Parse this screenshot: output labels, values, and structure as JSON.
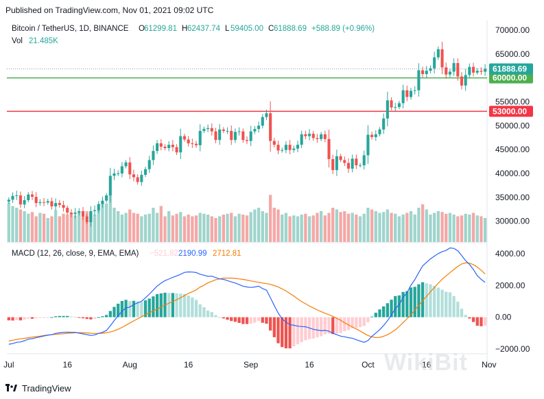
{
  "header": {
    "published": "Published on TradingView.com, Nov 01, 2021 09:02 UTC"
  },
  "legend": {
    "symbol": "Bitcoin / TetherUS, 1D, BINANCE",
    "o_label": "O",
    "o_value": "61299.81",
    "h_label": "H",
    "h_value": "62437.74",
    "l_label": "L",
    "l_value": "59405.00",
    "c_label": "C",
    "c_value": "61888.69",
    "change": "+588.89 (+0.96%)",
    "vol_label": "Vol",
    "vol_value": "21.485K"
  },
  "macd_legend": {
    "label": "MACD (12, 26, close, 9, EMA, EMA)",
    "hist": "−521.82",
    "macd": "2190.99",
    "signal": "2712.81"
  },
  "footer": {
    "brand": "TradingView"
  },
  "watermark": "WikiBit",
  "colors": {
    "up": "#26a69a",
    "down": "#ef5350",
    "vol_up": "#9fd4cc",
    "vol_down": "#f4a8a6",
    "macd": "#2962ff",
    "signal": "#f57c00",
    "hist_up_strong": "#26a69a",
    "hist_up_weak": "#b2dfdb",
    "hist_down_strong": "#ef5350",
    "hist_down_weak": "#ffcdd2",
    "green_line": "#4caf50",
    "red_line": "#f23645",
    "price_tag": "#26a69a"
  },
  "chart_data": [
    {
      "type": "candlestick",
      "price_axis": [
        "70000.00",
        "65000.00",
        "60000.00",
        "55000.00",
        "50000.00",
        "45000.00",
        "40000.00",
        "35000.00",
        "30000.00"
      ],
      "time_axis": [
        {
          "label": "Jul",
          "day": 0
        },
        {
          "label": "16",
          "day": 15
        },
        {
          "label": "Aug",
          "day": 31
        },
        {
          "label": "16",
          "day": 46
        },
        {
          "label": "Sep",
          "day": 62
        },
        {
          "label": "16",
          "day": 77
        },
        {
          "label": "Oct",
          "day": 92
        },
        {
          "label": "16",
          "day": 107
        },
        {
          "label": "Nov",
          "day": 123
        }
      ],
      "ylim": [
        25500,
        72000
      ],
      "horizontal_lines": [
        {
          "price": 60000,
          "label": "60000.00",
          "color": "#4caf50"
        },
        {
          "price": 53000,
          "label": "53000.00",
          "color": "#f23645"
        }
      ],
      "last_price": {
        "price": 61888.69,
        "label": "61888.69"
      },
      "closes": [
        34500,
        35300,
        35400,
        33500,
        34400,
        35600,
        35100,
        33800,
        34000,
        33900,
        34200,
        33100,
        33800,
        33400,
        32800,
        31800,
        31500,
        31800,
        32100,
        31000,
        29800,
        32100,
        32300,
        33600,
        34300,
        35400,
        39500,
        40000,
        40000,
        41500,
        42300,
        39800,
        39200,
        38200,
        39700,
        40900,
        42800,
        44700,
        46300,
        45600,
        45300,
        46000,
        45500,
        44400,
        47800,
        47100,
        46300,
        46200,
        45900,
        48900,
        49300,
        49500,
        48800,
        47000,
        49200,
        48900,
        48900,
        47000,
        48700,
        48800,
        47000,
        46800,
        48800,
        49300,
        50000,
        51800,
        52600,
        46800,
        46000,
        44800,
        44900,
        46000,
        44900,
        45200,
        46000,
        48200,
        47800,
        48300,
        47400,
        47200,
        48200,
        47200,
        43000,
        40700,
        43600,
        42800,
        42200,
        41000,
        43100,
        41700,
        41700,
        43800,
        48100,
        47600,
        48200,
        49200,
        51500,
        55300,
        53800,
        53900,
        54700,
        57400,
        56000,
        57300,
        57400,
        61600,
        60800,
        61500,
        62000,
        64300,
        66000,
        62200,
        60700,
        61300,
        63100,
        60300,
        58400,
        60600,
        62300,
        61100,
        61500,
        61300,
        61900
      ],
      "volume_axis_note": "volume bars overlaid at bottom of price pane",
      "volumes": [
        46,
        42,
        40,
        38,
        36,
        33,
        35,
        30,
        34,
        33,
        28,
        30,
        37,
        30,
        33,
        32,
        34,
        31,
        35,
        30,
        36,
        35,
        32,
        38,
        48,
        45,
        55,
        40,
        36,
        32,
        34,
        38,
        34,
        33,
        30,
        32,
        33,
        40,
        34,
        42,
        30,
        36,
        31,
        33,
        35,
        30,
        32,
        30,
        31,
        34,
        33,
        32,
        30,
        28,
        30,
        32,
        33,
        34,
        30,
        33,
        32,
        31,
        35,
        38,
        40,
        36,
        34,
        55,
        40,
        38,
        32,
        34,
        30,
        31,
        30,
        32,
        33,
        30,
        31,
        34,
        36,
        31,
        34,
        40,
        38,
        35,
        36,
        33,
        34,
        32,
        30,
        33,
        40,
        38,
        36,
        34,
        35,
        38,
        34,
        33,
        30,
        32,
        34,
        36,
        32,
        40,
        44,
        38,
        32,
        34,
        36,
        35,
        33,
        34,
        32,
        30,
        31,
        33,
        32,
        34,
        31,
        30,
        28
      ]
    },
    {
      "type": "macd",
      "axis": [
        "4000.00",
        "2000.00",
        "0.00",
        "−2000.00"
      ],
      "ylim": [
        -2300,
        4600
      ],
      "macd": [
        -1700,
        -1660,
        -1580,
        -1560,
        -1480,
        -1380,
        -1350,
        -1290,
        -1240,
        -1180,
        -1130,
        -1100,
        -1020,
        -980,
        -960,
        -940,
        -950,
        -960,
        -1000,
        -1050,
        -1100,
        -1150,
        -1120,
        -1020,
        -950,
        -840,
        -540,
        -210,
        90,
        380,
        590,
        640,
        800,
        900,
        1000,
        1220,
        1450,
        1700,
        1960,
        2140,
        2300,
        2400,
        2510,
        2600,
        2700,
        2820,
        2850,
        2840,
        2810,
        2700,
        2640,
        2570,
        2580,
        2490,
        2410,
        2380,
        2300,
        2220,
        2150,
        2050,
        1950,
        1900,
        1870,
        1900,
        1950,
        1800,
        1700,
        1230,
        730,
        260,
        -100,
        -310,
        -470,
        -510,
        -560,
        -590,
        -600,
        -680,
        -760,
        -810,
        -850,
        -830,
        -880,
        -1010,
        -1100,
        -1190,
        -1230,
        -1290,
        -1320,
        -1420,
        -1500,
        -1580,
        -1470,
        -1200,
        -1000,
        -780,
        -520,
        -220,
        140,
        540,
        790,
        1250,
        1540,
        2010,
        2360,
        2800,
        3230,
        3450,
        3670,
        3840,
        4000,
        4120,
        4200,
        4360,
        4330,
        4180,
        3880,
        3560,
        3320,
        3000,
        2610,
        2380,
        2190
      ],
      "signal": [
        -1500,
        -1450,
        -1400,
        -1360,
        -1330,
        -1290,
        -1250,
        -1220,
        -1190,
        -1150,
        -1120,
        -1100,
        -1080,
        -1060,
        -1040,
        -1020,
        -1000,
        -980,
        -970,
        -980,
        -990,
        -1010,
        -1020,
        -1020,
        -1010,
        -980,
        -930,
        -860,
        -760,
        -640,
        -500,
        -370,
        -230,
        -100,
        30,
        160,
        280,
        390,
        510,
        640,
        760,
        880,
        990,
        1100,
        1220,
        1360,
        1490,
        1600,
        1720,
        1890,
        2010,
        2160,
        2260,
        2360,
        2410,
        2460,
        2460,
        2460,
        2440,
        2410,
        2380,
        2330,
        2280,
        2240,
        2190,
        2150,
        2110,
        2070,
        1990,
        1900,
        1780,
        1650,
        1490,
        1330,
        1150,
        980,
        850,
        700,
        580,
        460,
        350,
        250,
        160,
        50,
        -70,
        -190,
        -350,
        -480,
        -620,
        -740,
        -870,
        -1020,
        -1150,
        -1240,
        -1280,
        -1270,
        -1200,
        -1100,
        -960,
        -790,
        -580,
        -340,
        -100,
        140,
        450,
        730,
        1030,
        1320,
        1600,
        1870,
        2140,
        2390,
        2600,
        2800,
        3000,
        3200,
        3350,
        3420,
        3400,
        3300,
        3150,
        2950,
        2713
      ]
    }
  ]
}
